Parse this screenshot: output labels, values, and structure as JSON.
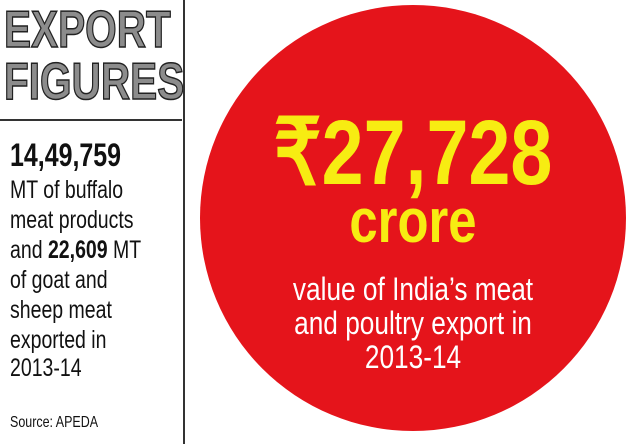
{
  "header": {
    "title_lines": [
      "EXPORT",
      "FIGURES"
    ]
  },
  "sidebar": {
    "figure": "14,49,759",
    "lines_top": [
      "MT of buffalo",
      "meat products"
    ],
    "mixed_line": {
      "lead": "and",
      "bold": "22,609",
      "rest": "MT"
    },
    "lines_bottom": [
      "of goat and",
      "sheep meat",
      "exported in",
      "2013-14"
    ],
    "source": "Source: APEDA"
  },
  "circle": {
    "amount": "₹27,728",
    "unit": "crore",
    "caption_lines": [
      "value of India’s meat",
      "and poultry export in",
      "2013-14"
    ]
  }
}
